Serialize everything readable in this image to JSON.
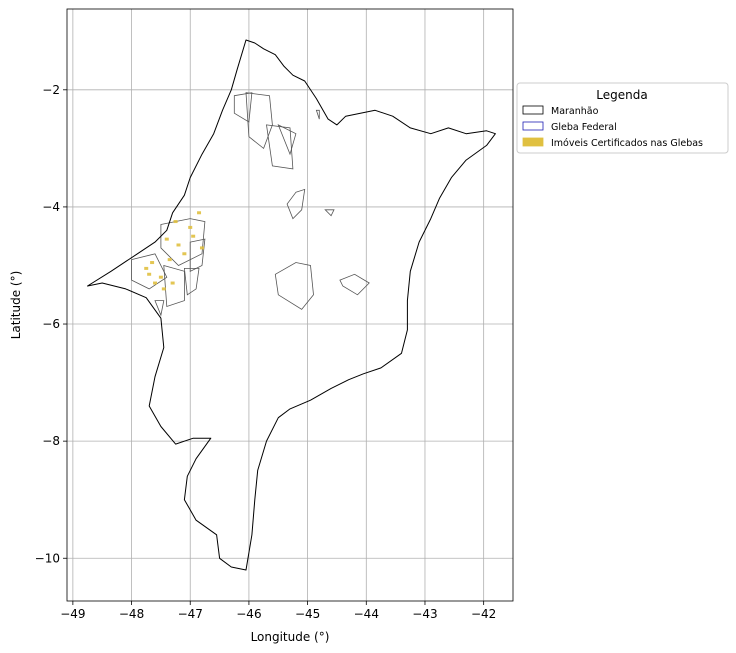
{
  "chart_data": {
    "type": "map",
    "xlabel": "Longitude (°)",
    "ylabel": "Latitude (°)",
    "xlim": [
      -49.1,
      -41.5
    ],
    "ylim": [
      -10.73,
      -0.62
    ],
    "xticks": [
      -49,
      -48,
      -47,
      -46,
      -45,
      -44,
      -43,
      -42
    ],
    "yticks": [
      -2,
      -4,
      -6,
      -8,
      -10
    ],
    "xtick_labels": [
      "−49",
      "−48",
      "−47",
      "−46",
      "−45",
      "−44",
      "−43",
      "−42"
    ],
    "ytick_labels": [
      "−2",
      "−4",
      "−6",
      "−8",
      "−10"
    ],
    "grid": true,
    "legend": {
      "title": "Legenda",
      "placement": "outside-right-top",
      "entries": [
        {
          "label": "Maranhão",
          "face": "#ffffff",
          "edge": "#000000"
        },
        {
          "label": "Gleba Federal",
          "face": "#ffffff",
          "edge": "#1f1fb4"
        },
        {
          "label": "Imóveis Certificados nas Glebas",
          "face": "#e0c040",
          "edge": "#e0c040"
        }
      ]
    },
    "state_outline": [
      [
        -48.75,
        -5.35
      ],
      [
        -48.35,
        -5.1
      ],
      [
        -47.9,
        -4.8
      ],
      [
        -47.6,
        -4.6
      ],
      [
        -47.4,
        -4.4
      ],
      [
        -47.3,
        -4.1
      ],
      [
        -47.1,
        -3.8
      ],
      [
        -47.0,
        -3.5
      ],
      [
        -46.8,
        -3.1
      ],
      [
        -46.6,
        -2.75
      ],
      [
        -46.45,
        -2.35
      ],
      [
        -46.3,
        -2.0
      ],
      [
        -46.2,
        -1.65
      ],
      [
        -46.05,
        -1.15
      ],
      [
        -45.9,
        -1.2
      ],
      [
        -45.75,
        -1.3
      ],
      [
        -45.55,
        -1.4
      ],
      [
        -45.4,
        -1.6
      ],
      [
        -45.25,
        -1.75
      ],
      [
        -45.05,
        -1.85
      ],
      [
        -44.85,
        -2.15
      ],
      [
        -44.65,
        -2.5
      ],
      [
        -44.5,
        -2.6
      ],
      [
        -44.35,
        -2.45
      ],
      [
        -44.1,
        -2.4
      ],
      [
        -43.85,
        -2.35
      ],
      [
        -43.55,
        -2.45
      ],
      [
        -43.25,
        -2.65
      ],
      [
        -42.9,
        -2.75
      ],
      [
        -42.6,
        -2.65
      ],
      [
        -42.3,
        -2.75
      ],
      [
        -41.95,
        -2.7
      ],
      [
        -41.8,
        -2.75
      ],
      [
        -41.95,
        -2.95
      ],
      [
        -42.3,
        -3.2
      ],
      [
        -42.55,
        -3.5
      ],
      [
        -42.75,
        -3.85
      ],
      [
        -42.9,
        -4.2
      ],
      [
        -43.1,
        -4.6
      ],
      [
        -43.25,
        -5.1
      ],
      [
        -43.3,
        -5.6
      ],
      [
        -43.3,
        -6.1
      ],
      [
        -43.4,
        -6.5
      ],
      [
        -43.75,
        -6.75
      ],
      [
        -44.05,
        -6.85
      ],
      [
        -44.3,
        -6.95
      ],
      [
        -44.6,
        -7.1
      ],
      [
        -44.95,
        -7.3
      ],
      [
        -45.3,
        -7.45
      ],
      [
        -45.5,
        -7.6
      ],
      [
        -45.7,
        -8.0
      ],
      [
        -45.85,
        -8.5
      ],
      [
        -45.9,
        -9.0
      ],
      [
        -45.95,
        -9.6
      ],
      [
        -46.05,
        -10.2
      ],
      [
        -46.3,
        -10.15
      ],
      [
        -46.5,
        -10.0
      ],
      [
        -46.55,
        -9.6
      ],
      [
        -46.9,
        -9.35
      ],
      [
        -47.1,
        -9.0
      ],
      [
        -47.05,
        -8.6
      ],
      [
        -46.9,
        -8.3
      ],
      [
        -46.65,
        -7.95
      ],
      [
        -46.95,
        -7.95
      ],
      [
        -47.25,
        -8.05
      ],
      [
        -47.5,
        -7.75
      ],
      [
        -47.7,
        -7.4
      ],
      [
        -47.6,
        -6.9
      ],
      [
        -47.45,
        -6.4
      ],
      [
        -47.5,
        -5.9
      ],
      [
        -47.75,
        -5.55
      ],
      [
        -48.1,
        -5.4
      ],
      [
        -48.5,
        -5.3
      ],
      [
        -48.75,
        -5.35
      ]
    ],
    "gleba_polygons": [
      [
        [
          -46.05,
          -2.05
        ],
        [
          -45.65,
          -2.1
        ],
        [
          -45.6,
          -2.6
        ],
        [
          -45.75,
          -3.0
        ],
        [
          -46.0,
          -2.8
        ]
      ],
      [
        [
          -45.7,
          -2.6
        ],
        [
          -45.3,
          -2.65
        ],
        [
          -45.25,
          -3.35
        ],
        [
          -45.6,
          -3.3
        ]
      ],
      [
        [
          -46.25,
          -2.1
        ],
        [
          -45.95,
          -2.05
        ],
        [
          -46.0,
          -2.55
        ],
        [
          -46.25,
          -2.4
        ]
      ],
      [
        [
          -45.5,
          -2.6
        ],
        [
          -45.2,
          -2.75
        ],
        [
          -45.3,
          -3.1
        ]
      ],
      [
        [
          -45.2,
          -3.75
        ],
        [
          -45.05,
          -3.7
        ],
        [
          -45.1,
          -4.05
        ],
        [
          -45.25,
          -4.2
        ],
        [
          -45.35,
          -3.95
        ]
      ],
      [
        [
          -44.7,
          -4.05
        ],
        [
          -44.55,
          -4.05
        ],
        [
          -44.6,
          -4.15
        ]
      ],
      [
        [
          -45.55,
          -5.15
        ],
        [
          -45.2,
          -4.95
        ],
        [
          -44.95,
          -5.0
        ],
        [
          -44.9,
          -5.5
        ],
        [
          -45.1,
          -5.75
        ],
        [
          -45.5,
          -5.5
        ]
      ],
      [
        [
          -44.45,
          -5.25
        ],
        [
          -44.2,
          -5.15
        ],
        [
          -43.95,
          -5.3
        ],
        [
          -44.15,
          -5.5
        ],
        [
          -44.4,
          -5.35
        ]
      ],
      [
        [
          -44.85,
          -2.35
        ],
        [
          -44.8,
          -2.35
        ],
        [
          -44.8,
          -2.5
        ]
      ],
      [
        [
          -47.5,
          -4.3
        ],
        [
          -47.0,
          -4.2
        ],
        [
          -46.75,
          -4.25
        ],
        [
          -46.8,
          -4.8
        ],
        [
          -47.2,
          -5.0
        ],
        [
          -47.5,
          -4.7
        ]
      ],
      [
        [
          -48.0,
          -4.9
        ],
        [
          -47.6,
          -4.8
        ],
        [
          -47.4,
          -5.2
        ],
        [
          -47.7,
          -5.4
        ],
        [
          -48.0,
          -5.25
        ]
      ],
      [
        [
          -47.45,
          -5.0
        ],
        [
          -47.1,
          -5.1
        ],
        [
          -47.1,
          -5.6
        ],
        [
          -47.4,
          -5.7
        ]
      ],
      [
        [
          -47.0,
          -4.6
        ],
        [
          -46.75,
          -4.55
        ],
        [
          -46.8,
          -5.0
        ],
        [
          -47.0,
          -5.1
        ]
      ],
      [
        [
          -47.1,
          -5.05
        ],
        [
          -46.85,
          -5.05
        ],
        [
          -46.9,
          -5.4
        ],
        [
          -47.05,
          -5.5
        ]
      ],
      [
        [
          -47.6,
          -5.6
        ],
        [
          -47.45,
          -5.6
        ],
        [
          -47.5,
          -5.85
        ]
      ]
    ],
    "certified_patches": [
      [
        -47.75,
        -5.05
      ],
      [
        -47.5,
        -5.2
      ],
      [
        -47.6,
        -5.3
      ],
      [
        -47.35,
        -4.9
      ],
      [
        -47.2,
        -4.65
      ],
      [
        -47.0,
        -4.35
      ],
      [
        -46.85,
        -4.1
      ],
      [
        -47.4,
        -4.55
      ],
      [
        -47.65,
        -4.95
      ],
      [
        -47.3,
        -5.3
      ],
      [
        -47.1,
        -4.8
      ],
      [
        -46.95,
        -4.5
      ],
      [
        -47.45,
        -5.4
      ],
      [
        -47.7,
        -5.15
      ],
      [
        -47.25,
        -4.25
      ],
      [
        -46.8,
        -4.7
      ]
    ]
  }
}
